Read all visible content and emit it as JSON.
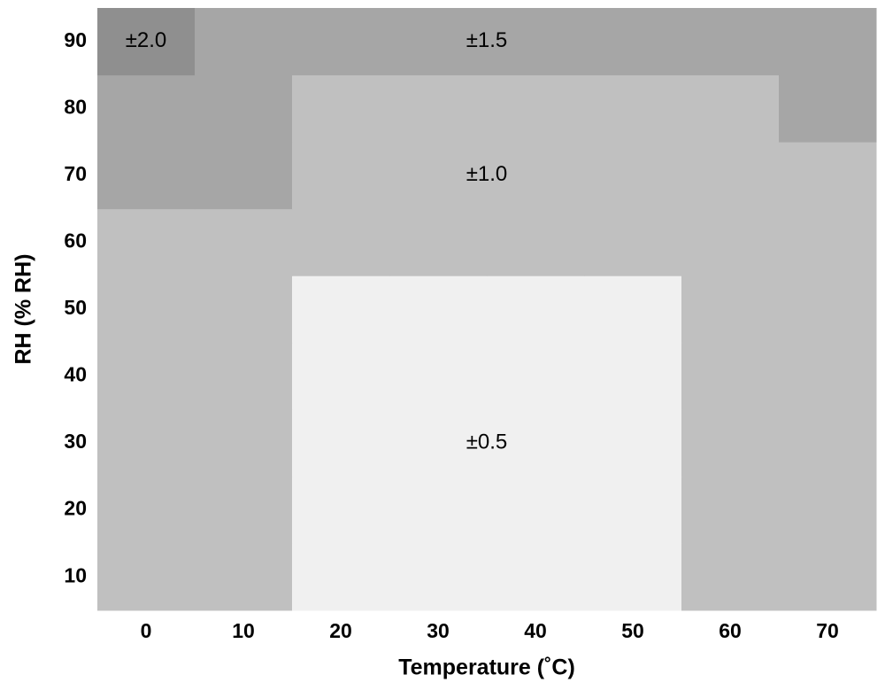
{
  "chart_data": {
    "type": "heatmap",
    "x_label": "Temperature (˚C)",
    "y_label": "RH (% RH)",
    "x": [
      0,
      10,
      20,
      30,
      40,
      50,
      60,
      70
    ],
    "y": [
      10,
      20,
      30,
      40,
      50,
      60,
      70,
      80,
      90
    ],
    "values": [
      [
        1.0,
        1.0,
        0.5,
        0.5,
        0.5,
        0.5,
        1.0,
        1.0
      ],
      [
        1.0,
        1.0,
        0.5,
        0.5,
        0.5,
        0.5,
        1.0,
        1.0
      ],
      [
        1.0,
        1.0,
        0.5,
        0.5,
        0.5,
        0.5,
        1.0,
        1.0
      ],
      [
        1.0,
        1.0,
        0.5,
        0.5,
        0.5,
        0.5,
        1.0,
        1.0
      ],
      [
        1.0,
        1.0,
        0.5,
        0.5,
        0.5,
        0.5,
        1.0,
        1.0
      ],
      [
        1.0,
        1.0,
        1.0,
        1.0,
        1.0,
        1.0,
        1.0,
        1.0
      ],
      [
        1.5,
        1.5,
        1.0,
        1.0,
        1.0,
        1.0,
        1.0,
        1.0
      ],
      [
        1.5,
        1.5,
        1.0,
        1.0,
        1.0,
        1.0,
        1.0,
        1.5
      ],
      [
        2.0,
        1.5,
        1.5,
        1.5,
        1.5,
        1.5,
        1.5,
        1.5
      ]
    ],
    "value_labels": [
      [
        null,
        null,
        null,
        null,
        null,
        null,
        null,
        null
      ],
      [
        null,
        null,
        null,
        null,
        null,
        null,
        null,
        null
      ],
      [
        null,
        null,
        null,
        "±0.5",
        null,
        null,
        null,
        null
      ],
      [
        null,
        null,
        null,
        null,
        null,
        null,
        null,
        null
      ],
      [
        null,
        null,
        null,
        null,
        null,
        null,
        null,
        null
      ],
      [
        null,
        null,
        null,
        null,
        null,
        null,
        null,
        null
      ],
      [
        null,
        null,
        null,
        "±1.0",
        null,
        null,
        null,
        null
      ],
      [
        null,
        null,
        null,
        null,
        null,
        null,
        null,
        null
      ],
      [
        "±2.0",
        null,
        null,
        "±1.5",
        null,
        null,
        null,
        null
      ]
    ],
    "levels": [
      {
        "value": 0.5,
        "color": "#f0f0f0"
      },
      {
        "value": 1.0,
        "color": "#c0c0c0"
      },
      {
        "value": 1.5,
        "color": "#a6a6a6"
      },
      {
        "value": 2.0,
        "color": "#8f8f8f"
      }
    ]
  }
}
